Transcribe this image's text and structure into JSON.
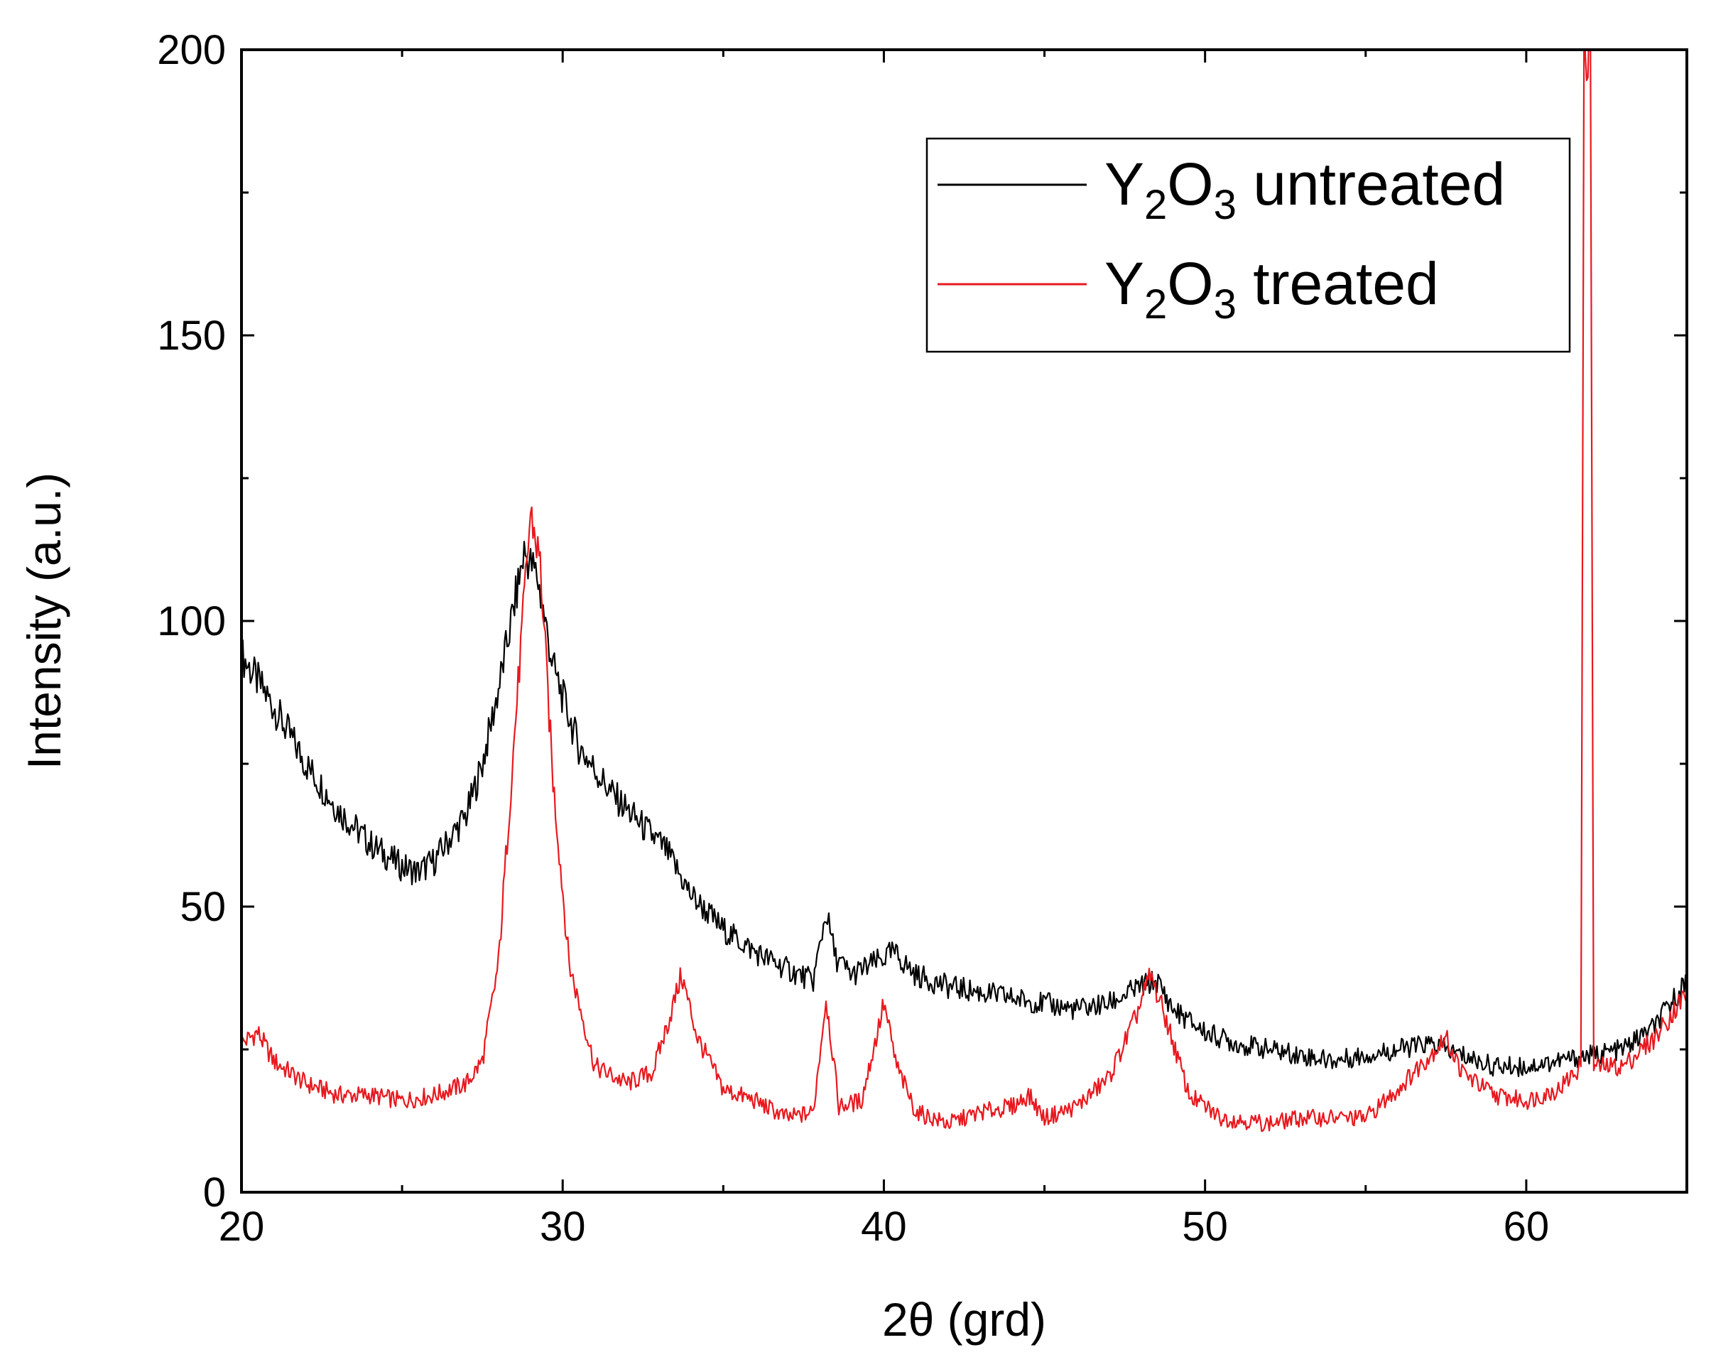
{
  "chart_data": {
    "type": "line",
    "title": "",
    "xlabel": "2θ (grd)",
    "ylabel": "Intensity (a.u.)",
    "xlim": [
      20,
      65
    ],
    "ylim": [
      0,
      200
    ],
    "x_ticks": [
      20,
      30,
      40,
      50,
      60
    ],
    "y_ticks": [
      0,
      50,
      100,
      150,
      200
    ],
    "legend_position": "top-right",
    "series": [
      {
        "name": "Y2O3 untreated",
        "legend": {
          "prefix": "Y",
          "sub1": "2",
          "mid": "O",
          "sub2": "3",
          "suffix": " untreated"
        },
        "color": "#000000",
        "points": [
          [
            20,
            94
          ],
          [
            21,
            85
          ],
          [
            22,
            75
          ],
          [
            23,
            67
          ],
          [
            24,
            61
          ],
          [
            25,
            57
          ],
          [
            25.5,
            56
          ],
          [
            26,
            58
          ],
          [
            27,
            66
          ],
          [
            27.5,
            75
          ],
          [
            28,
            88
          ],
          [
            28.5,
            103
          ],
          [
            28.8,
            112
          ],
          [
            29.2,
            108
          ],
          [
            29.7,
            92
          ],
          [
            30.5,
            78
          ],
          [
            31.5,
            70
          ],
          [
            32.5,
            64
          ],
          [
            33.2,
            60
          ],
          [
            34,
            52
          ],
          [
            35,
            46
          ],
          [
            36,
            42
          ],
          [
            37,
            39
          ],
          [
            37.8,
            37
          ],
          [
            38.2,
            49
          ],
          [
            38.5,
            41
          ],
          [
            39,
            38
          ],
          [
            40,
            41
          ],
          [
            40.3,
            42
          ],
          [
            41,
            38
          ],
          [
            42,
            36
          ],
          [
            43,
            35
          ],
          [
            44,
            34
          ],
          [
            45,
            33
          ],
          [
            46,
            32
          ],
          [
            47,
            33
          ],
          [
            48,
            36
          ],
          [
            48.5,
            37
          ],
          [
            49,
            32
          ],
          [
            50,
            28
          ],
          [
            51,
            26
          ],
          [
            52,
            25
          ],
          [
            53,
            24
          ],
          [
            54,
            23
          ],
          [
            55,
            24
          ],
          [
            56,
            25
          ],
          [
            57,
            26
          ],
          [
            58,
            24
          ],
          [
            59,
            22
          ],
          [
            60,
            22
          ],
          [
            61,
            23
          ],
          [
            62,
            24
          ],
          [
            63,
            25
          ],
          [
            64,
            29
          ],
          [
            65,
            37
          ]
        ]
      },
      {
        "name": "Y2O3 treated",
        "legend": {
          "prefix": "Y",
          "sub1": "2",
          "mid": "O",
          "sub2": "3",
          "suffix": " treated"
        },
        "color": "#e8191f",
        "points": [
          [
            20,
            26
          ],
          [
            20.5,
            28
          ],
          [
            21,
            23
          ],
          [
            22,
            19
          ],
          [
            23,
            17
          ],
          [
            24,
            17
          ],
          [
            25,
            16
          ],
          [
            26,
            17
          ],
          [
            27,
            19
          ],
          [
            27.5,
            23
          ],
          [
            28,
            40
          ],
          [
            28.5,
            80
          ],
          [
            29,
            119
          ],
          [
            29.3,
            110
          ],
          [
            29.7,
            72
          ],
          [
            30.2,
            40
          ],
          [
            31,
            22
          ],
          [
            32,
            19
          ],
          [
            32.8,
            21
          ],
          [
            33.3,
            30
          ],
          [
            33.7,
            38
          ],
          [
            34.2,
            27
          ],
          [
            35,
            18
          ],
          [
            36,
            16
          ],
          [
            37,
            13
          ],
          [
            37.8,
            14
          ],
          [
            38.2,
            34
          ],
          [
            38.6,
            15
          ],
          [
            39.3,
            16
          ],
          [
            39.8,
            28
          ],
          [
            40,
            33
          ],
          [
            40.4,
            22
          ],
          [
            41,
            14
          ],
          [
            42,
            12
          ],
          [
            43,
            14
          ],
          [
            44,
            15
          ],
          [
            44.5,
            17
          ],
          [
            45,
            13
          ],
          [
            46,
            15
          ],
          [
            47,
            20
          ],
          [
            47.8,
            30
          ],
          [
            48.3,
            38
          ],
          [
            48.8,
            30
          ],
          [
            49.5,
            17
          ],
          [
            50.5,
            13
          ],
          [
            52,
            12
          ],
          [
            53,
            13
          ],
          [
            54,
            13
          ],
          [
            55,
            13
          ],
          [
            56,
            18
          ],
          [
            57,
            24
          ],
          [
            57.5,
            27
          ],
          [
            58,
            21
          ],
          [
            59,
            17
          ],
          [
            60,
            16
          ],
          [
            61,
            18
          ],
          [
            61.7,
            22
          ],
          [
            61.8,
            200
          ],
          [
            62.0,
            200
          ],
          [
            62.1,
            22
          ],
          [
            63,
            22
          ],
          [
            64,
            27
          ],
          [
            65,
            35
          ]
        ]
      }
    ]
  }
}
